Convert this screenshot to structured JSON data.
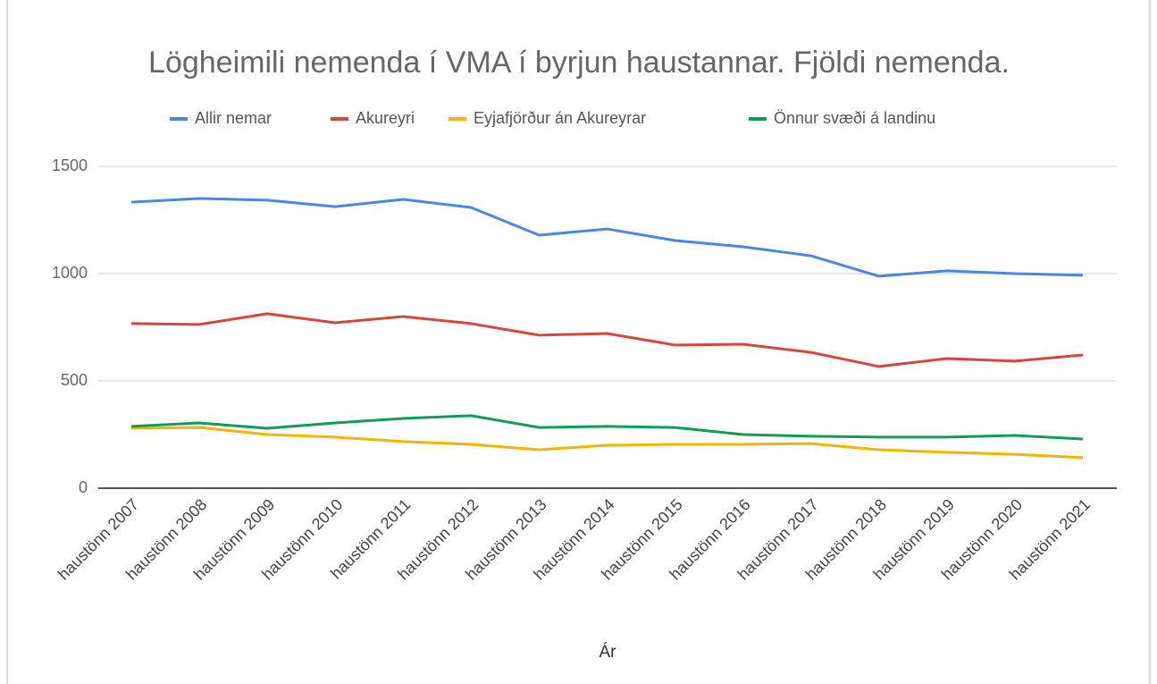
{
  "chart_data": {
    "type": "line",
    "title": "Lögheimili nemenda  í VMA í byrjun haustannar.  Fjöldi nemenda.",
    "x_label": "Ár",
    "categories": [
      "haustönn 2007",
      "haustönn 2008",
      "haustönn 2009",
      "haustönn 2010",
      "haustönn 2011",
      "haustönn 2012",
      "haustönn 2013",
      "haustönn 2014",
      "haustönn 2015",
      "haustönn 2016",
      "haustönn 2017",
      "haustönn 2018",
      "haustönn 2019",
      "haustönn 2020",
      "haustönn 2021"
    ],
    "series": [
      {
        "name": "Allir nemar",
        "color": "#4a86e8",
        "values": [
          1333,
          1350,
          1342,
          1312,
          1346,
          1308,
          1179,
          1208,
          1154,
          1125,
          1083,
          988,
          1013,
          1000,
          992
        ]
      },
      {
        "name": "Akureyri",
        "color": "#d9453c",
        "values": [
          767,
          763,
          813,
          771,
          800,
          767,
          713,
          721,
          667,
          671,
          633,
          567,
          604,
          592,
          621
        ]
      },
      {
        "name": "Eyjafjörður án Akureyrar",
        "color": "#f4b400",
        "values": [
          279,
          283,
          250,
          238,
          217,
          204,
          179,
          200,
          204,
          204,
          208,
          179,
          167,
          158,
          142
        ]
      },
      {
        "name": "Önnur svæði á landinu",
        "color": "#0f9d58",
        "values": [
          288,
          304,
          279,
          304,
          325,
          338,
          283,
          288,
          283,
          250,
          242,
          238,
          238,
          246,
          229
        ]
      }
    ],
    "ylim": [
      0,
      1500
    ],
    "yticks": [
      0,
      500,
      1000,
      1500
    ],
    "grid": true,
    "legend": "top"
  }
}
